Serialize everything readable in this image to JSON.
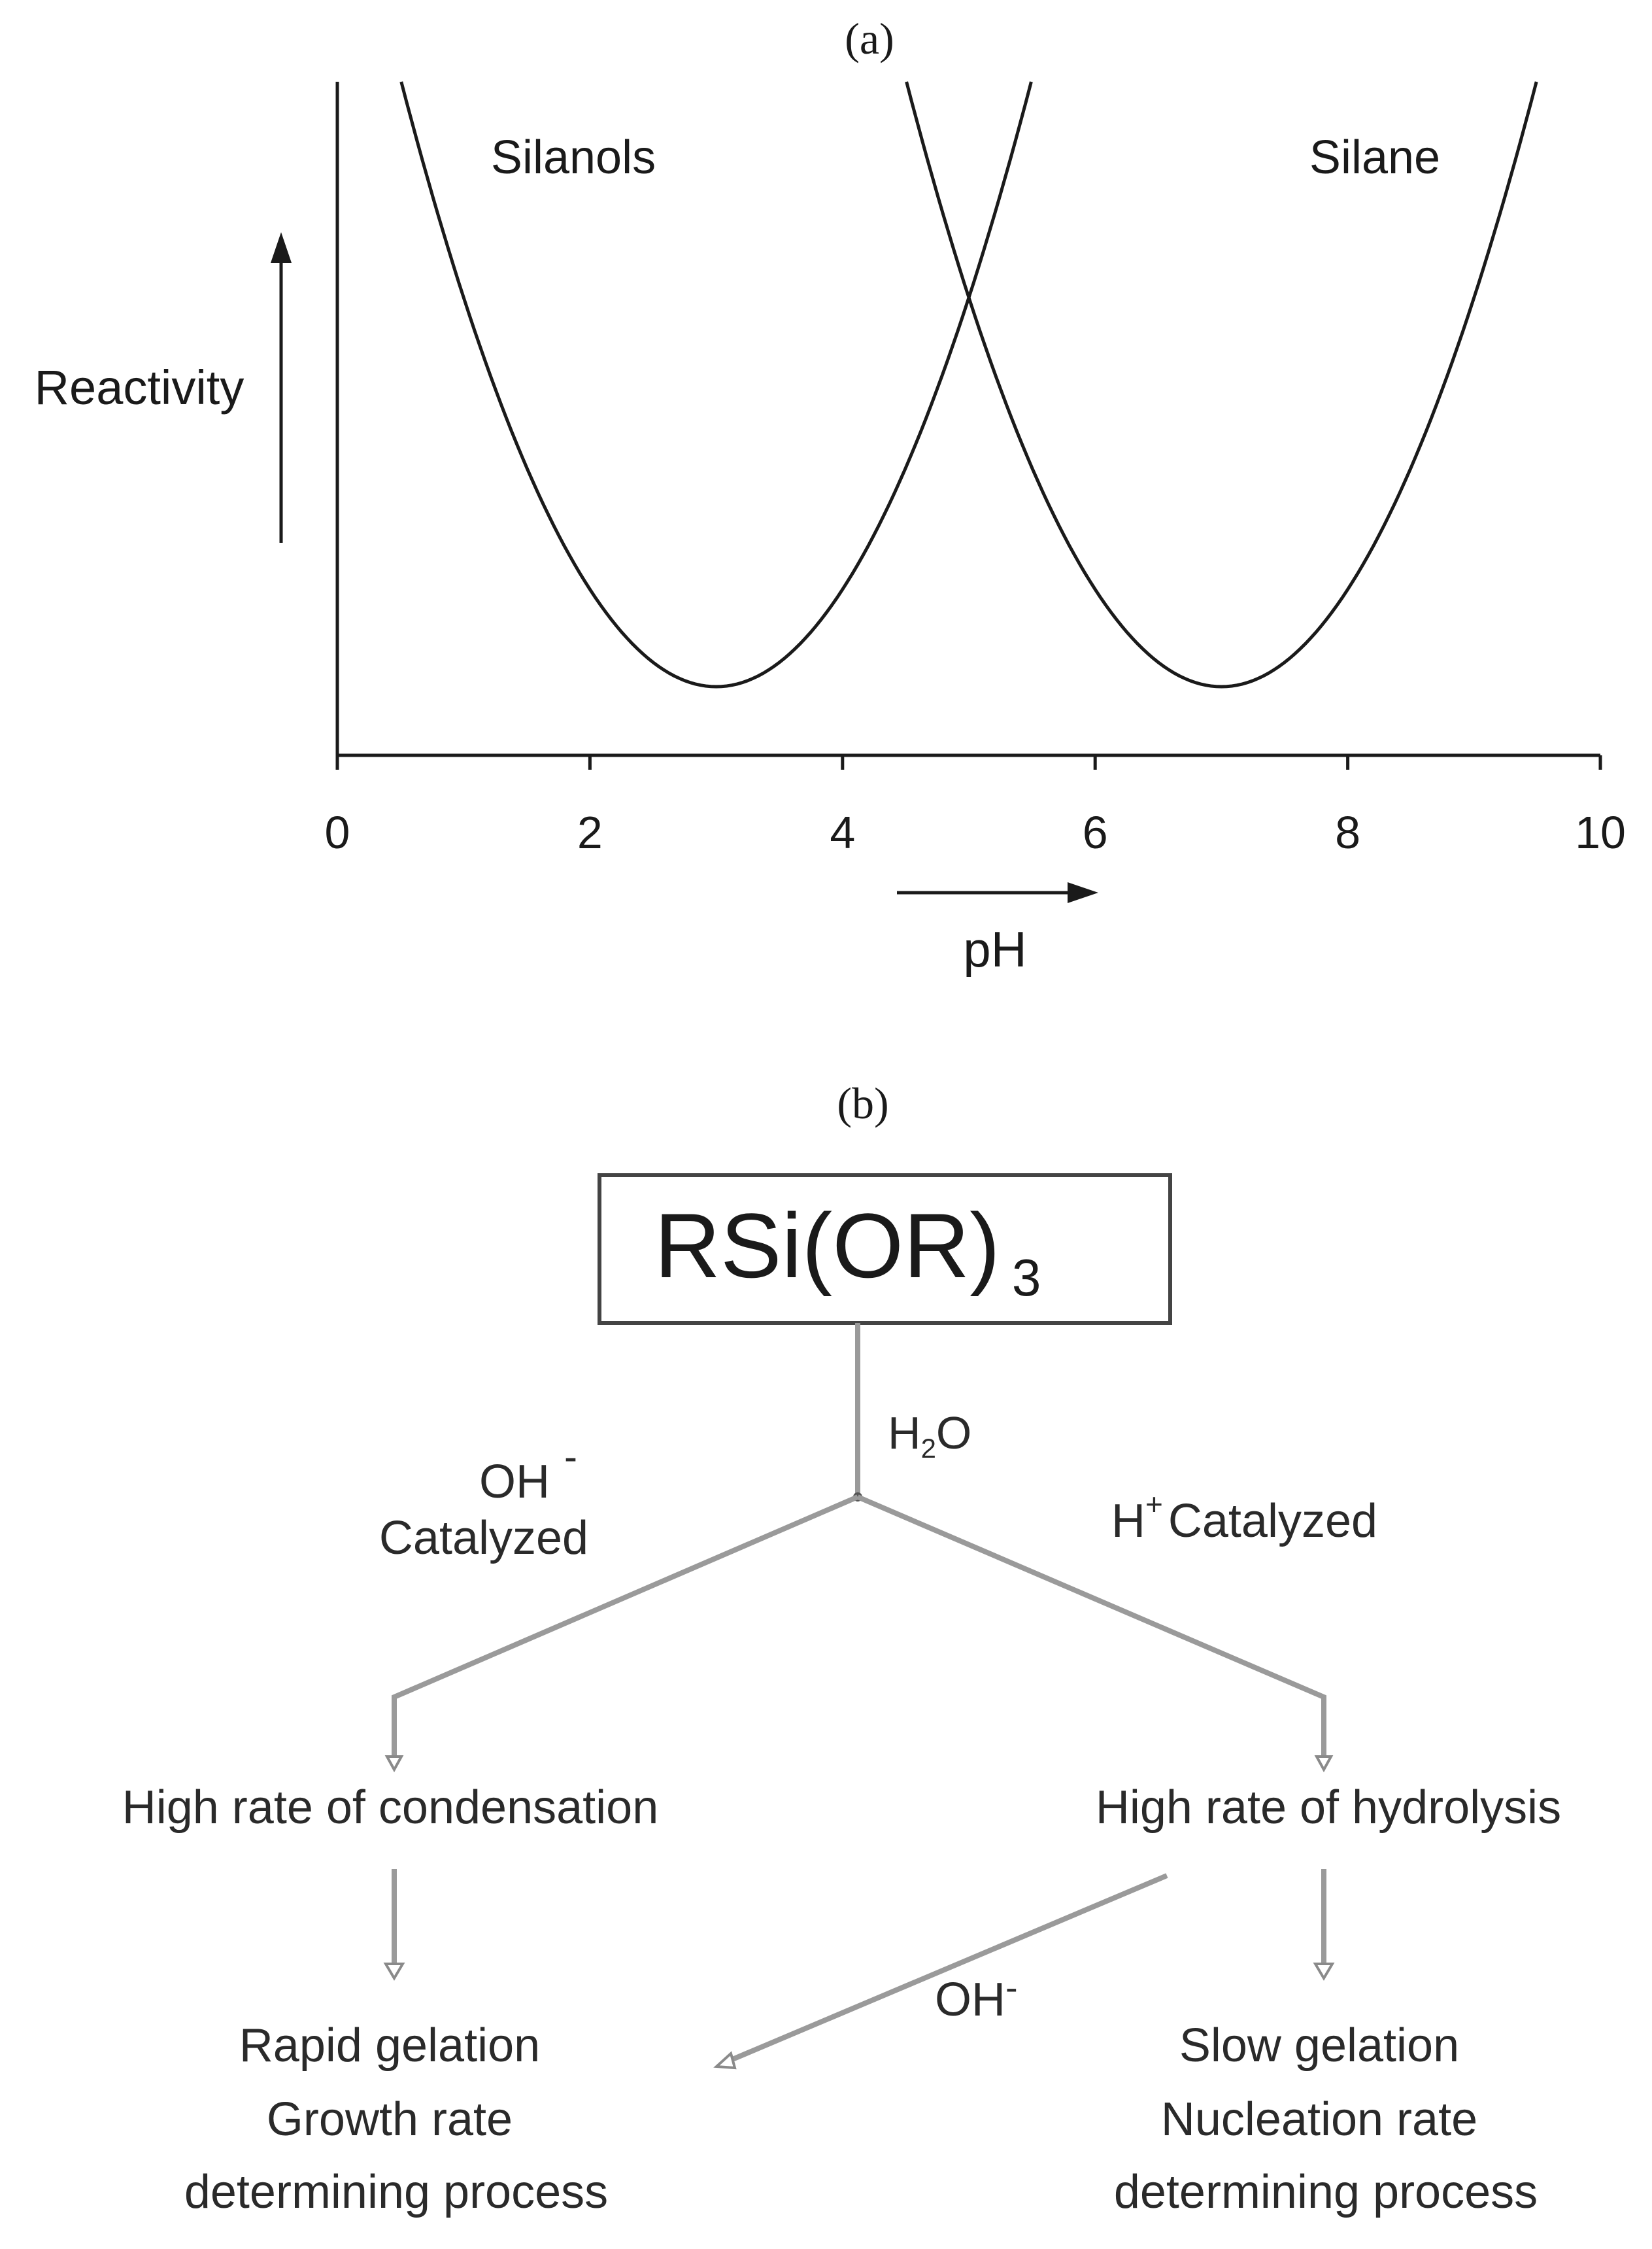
{
  "panel_a": {
    "label": "(a)",
    "y_label": "Reactivity",
    "x_label": "pH",
    "curve_labels": {
      "silanols": "Silanols",
      "silane": "Silane"
    },
    "chart_data": {
      "type": "line",
      "xlabel": "pH",
      "ylabel": "Reactivity",
      "xlim": [
        0,
        10
      ],
      "x_ticks": [
        "0",
        "2",
        "4",
        "6",
        "8",
        "10"
      ],
      "series": [
        {
          "name": "Silanols",
          "shape": "parabola",
          "minimum_x": 3
        },
        {
          "name": "Silane",
          "shape": "parabola",
          "minimum_x": 7
        }
      ],
      "intersection_x": 5
    }
  },
  "panel_b": {
    "label": "(b)",
    "root": {
      "main": "RSi(OR)",
      "subscript": "3"
    },
    "water": {
      "h": "H",
      "sub": "2",
      "o": "O"
    },
    "left_catalyst": {
      "ion": "OH",
      "charge": "-",
      "word": "Catalyzed"
    },
    "right_catalyst": {
      "ion": "H",
      "charge": "+",
      "word": "Catalyzed"
    },
    "left_result": "High rate of condensation",
    "right_result": "High rate of hydrolysis",
    "cross_label": {
      "ion": "OH",
      "charge": "-"
    },
    "left_outcome": [
      "Rapid gelation",
      "Growth rate",
      "determining process"
    ],
    "right_outcome": [
      "Slow gelation",
      "Nucleation rate",
      "determining process"
    ],
    "colors": {
      "flow_line": "#9a9a9a",
      "box_border": "#444444"
    }
  }
}
